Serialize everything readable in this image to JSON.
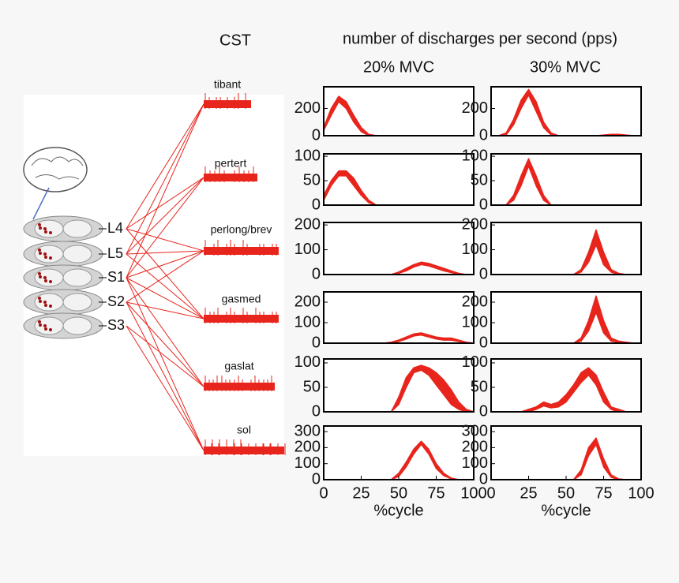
{
  "figure": {
    "cst": "CST",
    "title": "number of discharges per second (pps)",
    "columns": [
      "20% MVC",
      "30% MVC"
    ],
    "muscles": [
      "tibant",
      "pertert",
      "perlong/brev",
      "gasmed",
      "gaslat",
      "sol"
    ],
    "levels": [
      "L4",
      "L5",
      "S1",
      "S2",
      "S3"
    ]
  },
  "chart_data": [
    {
      "type": "band",
      "color": "#e8251c",
      "xlim": [
        0,
        100
      ],
      "ylim": [
        0,
        360
      ],
      "yticks": [
        0,
        200
      ],
      "x": [
        0,
        5,
        10,
        15,
        20,
        25,
        30,
        35,
        40,
        45,
        50,
        55,
        60,
        65,
        70,
        75,
        80,
        85,
        90,
        95,
        100
      ],
      "upper": [
        60,
        200,
        290,
        250,
        150,
        60,
        10,
        0,
        0,
        0,
        0,
        0,
        0,
        0,
        0,
        0,
        0,
        0,
        0,
        0,
        0
      ],
      "lower": [
        40,
        150,
        250,
        200,
        100,
        30,
        0,
        0,
        0,
        0,
        0,
        0,
        0,
        0,
        0,
        0,
        0,
        0,
        0,
        0,
        0
      ]
    },
    {
      "type": "band",
      "color": "#e8251c",
      "xlim": [
        0,
        100
      ],
      "ylim": [
        0,
        360
      ],
      "yticks": [
        0,
        200
      ],
      "x": [
        0,
        5,
        10,
        15,
        20,
        25,
        30,
        35,
        40,
        45,
        50,
        55,
        60,
        65,
        70,
        75,
        80,
        85,
        90,
        95,
        100
      ],
      "upper": [
        0,
        0,
        20,
        120,
        260,
        340,
        250,
        100,
        20,
        0,
        0,
        0,
        0,
        0,
        0,
        5,
        10,
        10,
        5,
        0,
        0
      ],
      "lower": [
        0,
        0,
        5,
        80,
        200,
        300,
        180,
        60,
        5,
        0,
        0,
        0,
        0,
        0,
        0,
        0,
        5,
        5,
        0,
        0,
        0
      ]
    },
    {
      "type": "band",
      "color": "#e8251c",
      "xlim": [
        0,
        100
      ],
      "ylim": [
        0,
        105
      ],
      "yticks": [
        0,
        50,
        100
      ],
      "x": [
        0,
        5,
        10,
        15,
        20,
        25,
        30,
        35,
        40,
        45,
        50,
        55,
        60,
        65,
        70,
        75,
        80,
        85,
        90,
        95,
        100
      ],
      "upper": [
        20,
        50,
        70,
        70,
        55,
        30,
        10,
        0,
        0,
        0,
        0,
        0,
        0,
        0,
        0,
        0,
        0,
        0,
        0,
        0,
        0
      ],
      "lower": [
        10,
        40,
        60,
        60,
        40,
        20,
        5,
        0,
        0,
        0,
        0,
        0,
        0,
        0,
        0,
        0,
        0,
        0,
        0,
        0,
        0
      ]
    },
    {
      "type": "band",
      "color": "#e8251c",
      "xlim": [
        0,
        100
      ],
      "ylim": [
        0,
        105
      ],
      "yticks": [
        0,
        50,
        100
      ],
      "x": [
        0,
        5,
        10,
        15,
        20,
        25,
        30,
        35,
        40,
        45,
        50,
        55,
        60,
        65,
        70,
        75,
        80,
        85,
        90,
        95,
        100
      ],
      "upper": [
        0,
        0,
        0,
        20,
        60,
        95,
        60,
        20,
        0,
        0,
        0,
        0,
        0,
        0,
        0,
        0,
        0,
        0,
        0,
        0,
        0
      ],
      "lower": [
        0,
        0,
        0,
        10,
        40,
        80,
        40,
        10,
        0,
        0,
        0,
        0,
        0,
        0,
        0,
        0,
        0,
        0,
        0,
        0,
        0
      ]
    },
    {
      "type": "band",
      "color": "#e8251c",
      "xlim": [
        0,
        100
      ],
      "ylim": [
        0,
        210
      ],
      "yticks": [
        0,
        100,
        200
      ],
      "x": [
        0,
        5,
        10,
        15,
        20,
        25,
        30,
        35,
        40,
        45,
        50,
        55,
        60,
        65,
        70,
        75,
        80,
        85,
        90,
        95,
        100
      ],
      "upper": [
        0,
        0,
        0,
        0,
        0,
        0,
        0,
        0,
        0,
        0,
        10,
        25,
        40,
        50,
        45,
        35,
        25,
        15,
        5,
        0,
        0
      ],
      "lower": [
        0,
        0,
        0,
        0,
        0,
        0,
        0,
        0,
        0,
        0,
        5,
        15,
        30,
        40,
        35,
        25,
        15,
        8,
        2,
        0,
        0
      ]
    },
    {
      "type": "band",
      "color": "#e8251c",
      "xlim": [
        0,
        100
      ],
      "ylim": [
        0,
        210
      ],
      "yticks": [
        0,
        100,
        200
      ],
      "x": [
        0,
        5,
        10,
        15,
        20,
        25,
        30,
        35,
        40,
        45,
        50,
        55,
        60,
        65,
        70,
        75,
        80,
        85,
        90,
        95,
        100
      ],
      "upper": [
        0,
        0,
        0,
        0,
        0,
        0,
        0,
        0,
        0,
        0,
        0,
        0,
        20,
        90,
        180,
        90,
        20,
        5,
        0,
        0,
        0
      ],
      "lower": [
        0,
        0,
        0,
        0,
        0,
        0,
        0,
        0,
        0,
        0,
        0,
        0,
        10,
        50,
        120,
        40,
        10,
        0,
        0,
        0,
        0
      ]
    },
    {
      "type": "band",
      "color": "#e8251c",
      "xlim": [
        0,
        100
      ],
      "ylim": [
        0,
        250
      ],
      "yticks": [
        0,
        100,
        200
      ],
      "x": [
        0,
        5,
        10,
        15,
        20,
        25,
        30,
        35,
        40,
        45,
        50,
        55,
        60,
        65,
        70,
        75,
        80,
        85,
        90,
        95,
        100
      ],
      "upper": [
        0,
        0,
        0,
        0,
        0,
        0,
        0,
        0,
        0,
        5,
        15,
        30,
        45,
        50,
        40,
        30,
        25,
        25,
        15,
        5,
        0
      ],
      "lower": [
        0,
        0,
        0,
        0,
        0,
        0,
        0,
        0,
        0,
        2,
        8,
        20,
        35,
        40,
        30,
        20,
        15,
        15,
        8,
        2,
        0
      ]
    },
    {
      "type": "band",
      "color": "#e8251c",
      "xlim": [
        0,
        100
      ],
      "ylim": [
        0,
        250
      ],
      "yticks": [
        0,
        100,
        200
      ],
      "x": [
        0,
        5,
        10,
        15,
        20,
        25,
        30,
        35,
        40,
        45,
        50,
        55,
        60,
        65,
        70,
        75,
        80,
        85,
        90,
        95,
        100
      ],
      "upper": [
        0,
        0,
        0,
        0,
        0,
        0,
        0,
        0,
        0,
        0,
        0,
        0,
        25,
        110,
        230,
        110,
        25,
        10,
        5,
        0,
        0
      ],
      "lower": [
        0,
        0,
        0,
        0,
        0,
        0,
        0,
        0,
        0,
        0,
        0,
        0,
        10,
        60,
        150,
        50,
        10,
        5,
        0,
        0,
        0
      ]
    },
    {
      "type": "band",
      "color": "#e8251c",
      "xlim": [
        0,
        100
      ],
      "ylim": [
        0,
        108
      ],
      "yticks": [
        0,
        50,
        100
      ],
      "x": [
        0,
        5,
        10,
        15,
        20,
        25,
        30,
        35,
        40,
        45,
        50,
        55,
        60,
        65,
        70,
        75,
        80,
        85,
        90,
        95,
        100
      ],
      "upper": [
        0,
        0,
        0,
        0,
        0,
        0,
        0,
        0,
        0,
        0,
        30,
        70,
        90,
        95,
        90,
        80,
        65,
        45,
        20,
        5,
        0
      ],
      "lower": [
        0,
        0,
        0,
        0,
        0,
        0,
        0,
        0,
        0,
        0,
        15,
        50,
        80,
        85,
        75,
        55,
        35,
        15,
        5,
        0,
        0
      ]
    },
    {
      "type": "band",
      "color": "#e8251c",
      "xlim": [
        0,
        100
      ],
      "ylim": [
        0,
        108
      ],
      "yticks": [
        0,
        50,
        100
      ],
      "x": [
        0,
        5,
        10,
        15,
        20,
        25,
        30,
        35,
        40,
        45,
        50,
        55,
        60,
        65,
        70,
        75,
        80,
        85,
        90,
        95,
        100
      ],
      "upper": [
        0,
        0,
        0,
        0,
        0,
        5,
        10,
        20,
        15,
        20,
        35,
        55,
        80,
        90,
        75,
        40,
        10,
        5,
        0,
        0,
        0
      ],
      "lower": [
        0,
        0,
        0,
        0,
        0,
        0,
        5,
        12,
        8,
        10,
        20,
        40,
        60,
        75,
        55,
        20,
        5,
        0,
        0,
        0,
        0
      ]
    },
    {
      "type": "band",
      "color": "#e8251c",
      "xlim": [
        0,
        100
      ],
      "ylim": [
        0,
        335
      ],
      "yticks": [
        0,
        100,
        200,
        300
      ],
      "xticks": [
        0,
        25,
        50,
        75,
        100
      ],
      "xlabel": "%cycle",
      "x": [
        0,
        5,
        10,
        15,
        20,
        25,
        30,
        35,
        40,
        45,
        50,
        55,
        60,
        65,
        70,
        75,
        80,
        85,
        90,
        95,
        100
      ],
      "upper": [
        0,
        0,
        0,
        0,
        0,
        0,
        0,
        0,
        0,
        0,
        40,
        110,
        190,
        240,
        190,
        100,
        40,
        10,
        0,
        0,
        0
      ],
      "lower": [
        0,
        0,
        0,
        0,
        0,
        0,
        0,
        0,
        0,
        0,
        20,
        80,
        160,
        220,
        160,
        70,
        25,
        5,
        0,
        0,
        0
      ]
    },
    {
      "type": "band",
      "color": "#e8251c",
      "xlim": [
        0,
        100
      ],
      "ylim": [
        0,
        335
      ],
      "yticks": [
        0,
        100,
        200,
        300
      ],
      "xticks": [
        0,
        25,
        50,
        75,
        100
      ],
      "xlabel": "%cycle",
      "x": [
        0,
        5,
        10,
        15,
        20,
        25,
        30,
        35,
        40,
        45,
        50,
        55,
        60,
        65,
        70,
        75,
        80,
        85,
        90,
        95,
        100
      ],
      "upper": [
        0,
        0,
        0,
        0,
        0,
        0,
        0,
        0,
        0,
        0,
        0,
        0,
        60,
        200,
        260,
        130,
        30,
        5,
        0,
        0,
        0
      ],
      "lower": [
        0,
        0,
        0,
        0,
        0,
        0,
        0,
        0,
        0,
        0,
        0,
        0,
        30,
        150,
        220,
        80,
        15,
        0,
        0,
        0,
        0
      ]
    }
  ]
}
